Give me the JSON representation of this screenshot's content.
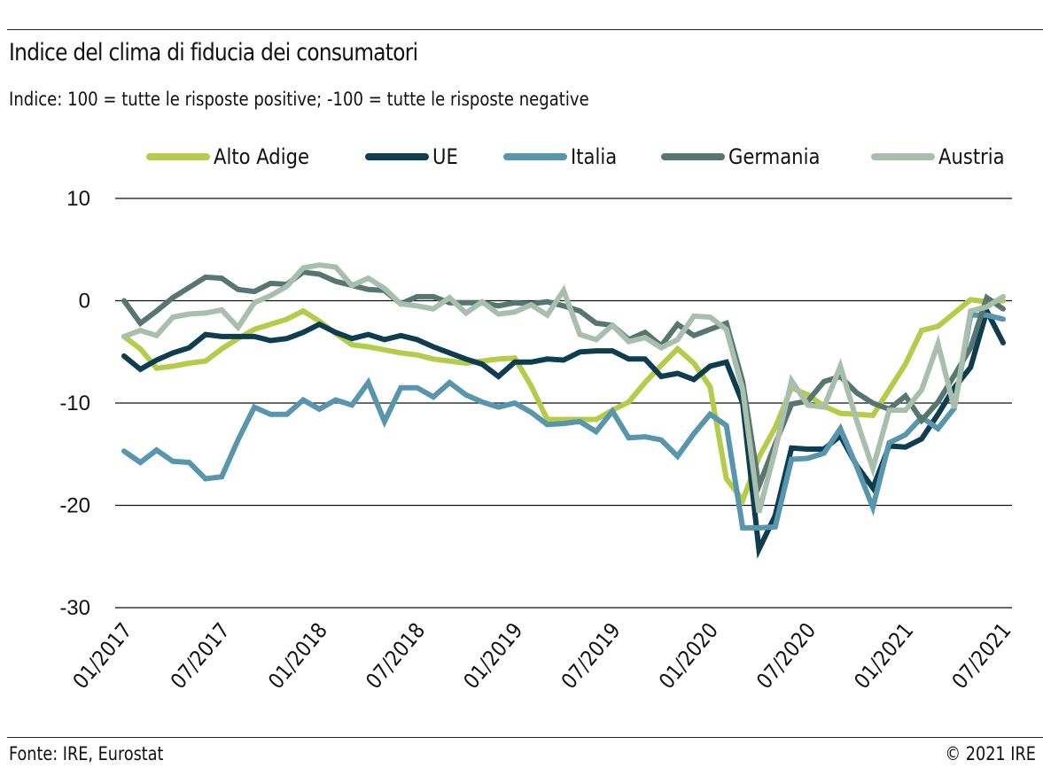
{
  "header": {
    "title": "Indice del clima di fiducia dei consumatori",
    "subtitle": "Indice: 100 = tutte le risposte positive; -100 =  tutte le risposte negative"
  },
  "footer": {
    "source": "Fonte: IRE, Eurostat",
    "copyright": "© 2021 IRE"
  },
  "chart_data": {
    "type": "line",
    "title": "Indice del clima di fiducia dei consumatori",
    "subtitle": "Indice: 100 = tutte le risposte positive; -100 =  tutte le risposte negative",
    "xlabel": "",
    "ylabel": "",
    "ylim": [
      -30,
      10
    ],
    "yticks": [
      10,
      0,
      -10,
      -20,
      -30
    ],
    "ytick_labels": [
      "10",
      "0",
      "-10",
      "-20",
      "-30"
    ],
    "grid": true,
    "legend_position": "top",
    "x_start": "01/2017",
    "x_end": "07/2021",
    "x_frequency": "monthly",
    "xtick_labels": [
      "01/2017",
      "07/2017",
      "01/2018",
      "07/2018",
      "01/2019",
      "07/2019",
      "01/2020",
      "07/2020",
      "01/2021",
      "07/2021"
    ],
    "xtick_month_index": [
      0,
      6,
      12,
      18,
      24,
      30,
      36,
      42,
      48,
      54
    ],
    "series": [
      {
        "name": "Alto Adige",
        "color": "#b5cc4a",
        "values": [
          -3.5,
          -4.7,
          -6.6,
          -6.4,
          -6.1,
          -5.9,
          -4.7,
          -3.7,
          -2.8,
          -2.3,
          -1.8,
          -1.0,
          -2.0,
          -3.2,
          -4.3,
          -4.5,
          -4.8,
          -5.1,
          -5.3,
          -5.7,
          -5.9,
          -6.1,
          -5.9,
          -5.7,
          -5.6,
          -8.3,
          -11.6,
          -11.6,
          -11.6,
          -11.6,
          -10.7,
          -9.9,
          -8.0,
          -6.3,
          -4.7,
          -6.1,
          -8.4,
          -17.4,
          -19.5,
          -15.3,
          -12.4,
          -8.5,
          -9.2,
          -10.3,
          -11.0,
          -11.1,
          -11.2,
          -8.7,
          -6.2,
          -2.9,
          -2.5,
          -1.2,
          0.1,
          -0.1,
          0.0
        ]
      },
      {
        "name": "UE",
        "color": "#0d3d4f",
        "values": [
          -5.4,
          -6.7,
          -5.8,
          -5.1,
          -4.6,
          -3.3,
          -3.5,
          -3.5,
          -3.5,
          -3.9,
          -3.7,
          -3.1,
          -2.3,
          -3.1,
          -3.7,
          -3.3,
          -3.8,
          -3.4,
          -3.8,
          -4.5,
          -5.1,
          -5.7,
          -6.2,
          -7.4,
          -6.0,
          -6.0,
          -5.7,
          -5.8,
          -5.0,
          -4.9,
          -4.9,
          -5.7,
          -5.7,
          -7.4,
          -7.1,
          -7.7,
          -6.4,
          -6.0,
          -10.0,
          -24.3,
          -21.0,
          -14.4,
          -14.5,
          -14.5,
          -13.2,
          -16.1,
          -18.3,
          -14.2,
          -14.3,
          -13.5,
          -11.1,
          -8.5,
          -6.5,
          -1.0,
          -4.1
        ]
      },
      {
        "name": "Italia",
        "color": "#5896ad",
        "values": [
          -14.7,
          -15.8,
          -14.6,
          -15.7,
          -15.8,
          -17.4,
          -17.2,
          -13.6,
          -10.4,
          -11.1,
          -11.1,
          -9.7,
          -10.6,
          -9.7,
          -10.2,
          -8.0,
          -11.8,
          -8.5,
          -8.5,
          -9.4,
          -8.0,
          -9.2,
          -9.9,
          -10.4,
          -10.0,
          -10.9,
          -12.1,
          -12.0,
          -11.8,
          -12.8,
          -10.8,
          -13.4,
          -13.3,
          -13.6,
          -15.2,
          -13.0,
          -11.1,
          -12.2,
          -22.2,
          -22.2,
          -22.1,
          -15.5,
          -15.4,
          -14.9,
          -12.5,
          -16.2,
          -20.2,
          -13.9,
          -13.1,
          -11.4,
          -12.5,
          -10.5,
          -1.4,
          -1.4,
          -1.8
        ]
      },
      {
        "name": "Germania",
        "color": "#56766f",
        "values": [
          0.0,
          -2.2,
          -1.0,
          0.3,
          1.3,
          2.3,
          2.2,
          1.1,
          0.9,
          1.7,
          1.6,
          2.8,
          2.6,
          1.9,
          1.5,
          1.1,
          1.0,
          -0.3,
          0.4,
          0.4,
          -0.2,
          -0.2,
          -0.2,
          -0.5,
          -0.2,
          -0.3,
          -0.1,
          -0.5,
          -1.0,
          -2.2,
          -2.4,
          -3.8,
          -3.1,
          -4.4,
          -2.3,
          -3.4,
          -2.8,
          -2.2,
          -7.9,
          -18.1,
          -14.0,
          -10.1,
          -9.8,
          -7.9,
          -7.4,
          -9.0,
          -10.0,
          -10.6,
          -9.3,
          -11.7,
          -9.9,
          -7.3,
          -4.6,
          0.3,
          -0.8
        ]
      },
      {
        "name": "Austria",
        "color": "#a7bfac",
        "values": [
          -3.5,
          -2.9,
          -3.4,
          -1.6,
          -1.3,
          -1.2,
          -0.9,
          -2.6,
          -0.2,
          0.5,
          1.4,
          3.2,
          3.5,
          3.3,
          1.5,
          2.2,
          1.2,
          -0.3,
          -0.5,
          -0.8,
          0.3,
          -1.2,
          -0.1,
          -1.3,
          -1.1,
          -0.4,
          -1.4,
          1.0,
          -3.3,
          -3.8,
          -2.4,
          -4.0,
          -3.6,
          -4.6,
          -3.8,
          -1.5,
          -1.6,
          -2.8,
          -8.7,
          -20.7,
          -14.6,
          -7.8,
          -10.2,
          -10.4,
          -6.4,
          -11.7,
          -16.4,
          -10.7,
          -10.7,
          -8.7,
          -4.2,
          -10.5,
          -1.0,
          -0.6,
          0.4
        ]
      }
    ]
  }
}
